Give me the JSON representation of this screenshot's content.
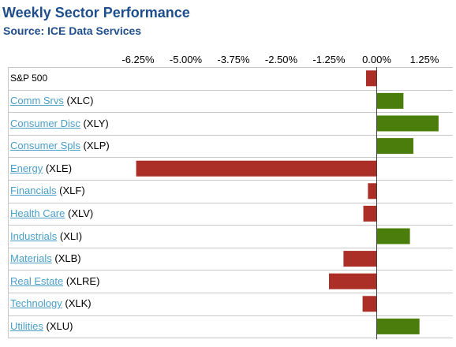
{
  "header": {
    "title": "Weekly Sector Performance",
    "subtitle": "Source: ICE Data Services"
  },
  "colors": {
    "title": "#1f4e8c",
    "link": "#4a9ec8",
    "positive": "#4a7d0c",
    "negative": "#ab2e27",
    "gridline": "#c8c8c8",
    "axis": "#404040"
  },
  "chart_data": {
    "type": "bar",
    "orientation": "horizontal",
    "title": "Weekly Sector Performance",
    "subtitle": "Source: ICE Data Services",
    "xlim": [
      -7.0,
      2.0
    ],
    "xticks": [
      -6.25,
      -5.0,
      -3.75,
      -2.5,
      -1.25,
      0.0,
      1.25
    ],
    "xtick_labels": [
      "-6.25%",
      "-5.00%",
      "-3.75%",
      "-2.50%",
      "-1.25%",
      "0.00%",
      "1.25%"
    ],
    "tick_position": "top",
    "grid": "horizontal row separators",
    "categories": [
      {
        "name": "S&P 500",
        "ticker": "",
        "link": false
      },
      {
        "name": "Comm Srvs",
        "ticker": "(XLC)",
        "link": true
      },
      {
        "name": "Consumer Disc",
        "ticker": "(XLY)",
        "link": true
      },
      {
        "name": "Consumer Spls",
        "ticker": "(XLP)",
        "link": true
      },
      {
        "name": "Energy",
        "ticker": "(XLE)",
        "link": true
      },
      {
        "name": "Financials",
        "ticker": "(XLF)",
        "link": true
      },
      {
        "name": "Health Care",
        "ticker": "(XLV)",
        "link": true
      },
      {
        "name": "Industrials",
        "ticker": "(XLI)",
        "link": true
      },
      {
        "name": "Materials",
        "ticker": "(XLB)",
        "link": true
      },
      {
        "name": "Real Estate",
        "ticker": "(XLRE)",
        "link": true
      },
      {
        "name": "Technology",
        "ticker": "(XLK)",
        "link": true
      },
      {
        "name": "Utilities",
        "ticker": "(XLU)",
        "link": true
      }
    ],
    "values": [
      -0.28,
      0.7,
      1.62,
      0.96,
      -6.3,
      -0.23,
      -0.35,
      0.87,
      -0.87,
      -1.25,
      -0.37,
      1.12
    ]
  }
}
